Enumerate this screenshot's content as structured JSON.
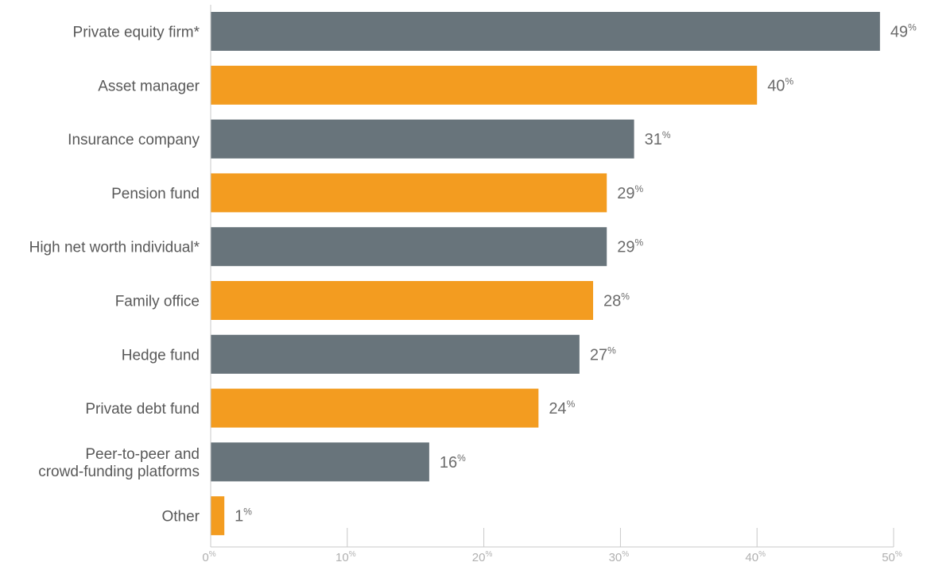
{
  "chart_data": {
    "type": "bar",
    "orientation": "horizontal",
    "categories": [
      [
        "Private equity firm*"
      ],
      [
        "Asset manager"
      ],
      [
        "Insurance company"
      ],
      [
        "Pension fund"
      ],
      [
        "High net worth individual*"
      ],
      [
        "Family office"
      ],
      [
        "Hedge fund"
      ],
      [
        "Private debt fund"
      ],
      [
        "Peer-to-peer and",
        "crowd-funding platforms"
      ],
      [
        "Other"
      ]
    ],
    "values": [
      49,
      40,
      31,
      29,
      29,
      28,
      27,
      24,
      16,
      1
    ],
    "value_unit": "%",
    "bar_colors": [
      "#68747b",
      "#f39c20",
      "#68747b",
      "#f39c20",
      "#68747b",
      "#f39c20",
      "#68747b",
      "#f39c20",
      "#68747b",
      "#f39c20"
    ],
    "xlim": [
      0,
      50
    ],
    "xticks": [
      0,
      10,
      20,
      30,
      40,
      50
    ],
    "xtick_unit": "%",
    "title": "",
    "xlabel": "",
    "ylabel": "",
    "grid": false,
    "legend": "none"
  }
}
